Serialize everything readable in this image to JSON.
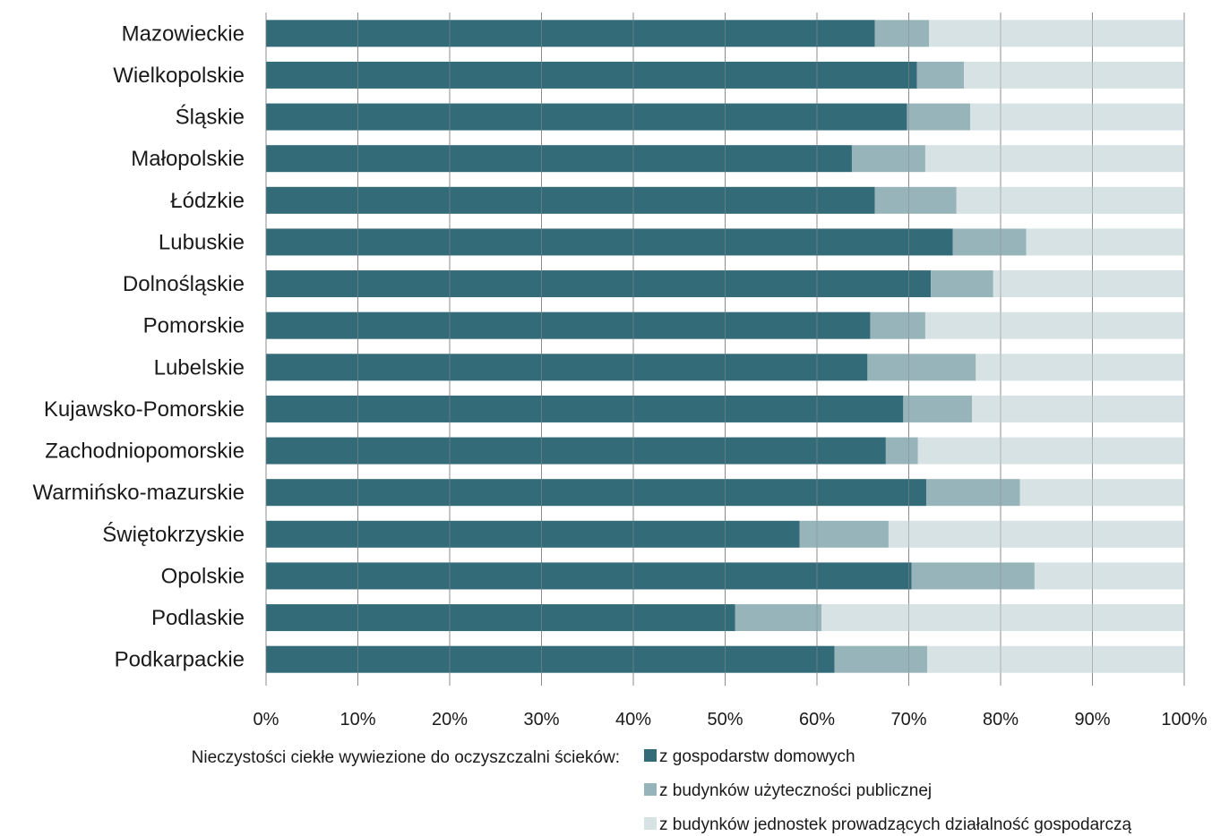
{
  "chart_data": {
    "type": "bar",
    "orientation": "horizontal",
    "stacked": true,
    "normalized": true,
    "categories": [
      "Mazowieckie",
      "Wielkopolskie",
      "Śląskie",
      "Małopolskie",
      "Łódzkie",
      "Lubuskie",
      "Dolnośląskie",
      "Pomorskie",
      "Lubelskie",
      "Kujawsko-Pomorskie",
      "Zachodniopomorskie",
      "Warmińsko-mazurskie",
      "Świętokrzyskie",
      "Opolskie",
      "Podlaskie",
      "Podkarpackie"
    ],
    "series": [
      {
        "name": "z gospodarstw domowych",
        "color": "#336b78",
        "values": [
          66.3,
          70.9,
          69.8,
          63.8,
          66.3,
          74.8,
          72.4,
          65.8,
          65.5,
          69.4,
          67.5,
          71.9,
          58.1,
          70.3,
          51.1,
          61.9
        ]
      },
      {
        "name": "z budynków użyteczności publicznej",
        "color": "#98b4bb",
        "values": [
          5.9,
          5.1,
          6.9,
          8.0,
          8.9,
          8.0,
          6.8,
          6.0,
          11.8,
          7.5,
          3.5,
          10.2,
          9.7,
          13.4,
          9.4,
          10.1
        ]
      },
      {
        "name": "z budynków jednostek prowadzących działalność gospodarczą",
        "color": "#d6e2e4",
        "values": [
          27.8,
          24.0,
          23.3,
          28.2,
          24.8,
          17.2,
          20.8,
          28.2,
          22.7,
          23.1,
          29.0,
          17.9,
          32.2,
          16.3,
          39.5,
          28.0
        ]
      }
    ],
    "xlim": [
      0,
      100
    ],
    "xticks": [
      "0%",
      "10%",
      "20%",
      "30%",
      "40%",
      "50%",
      "60%",
      "70%",
      "80%",
      "90%",
      "100%"
    ],
    "grid": true,
    "legend_position": "bottom"
  },
  "legend": {
    "title": "Nieczystości ciekłe wywiezione do oczyszczalni ścieków:"
  }
}
